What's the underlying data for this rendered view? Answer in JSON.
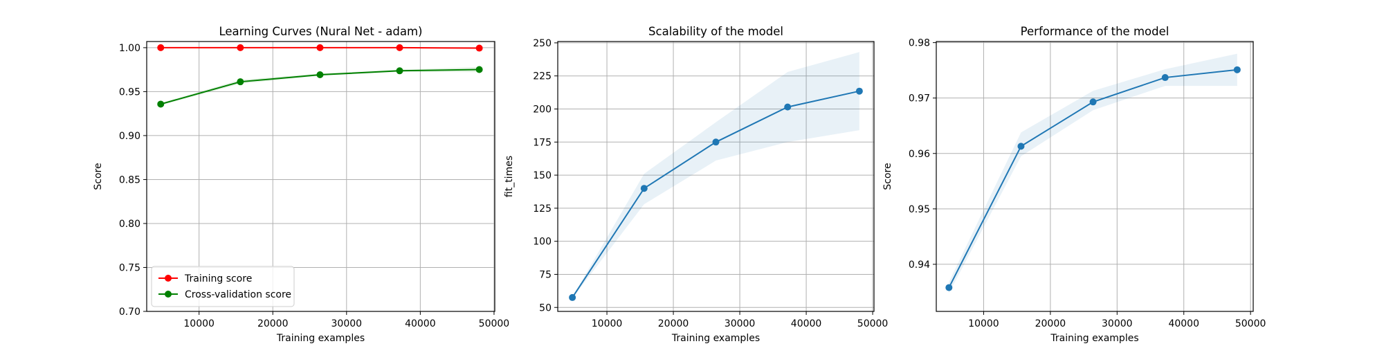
{
  "chart_data": [
    {
      "type": "line",
      "title": "Learning Curves (Nural Net - adam)",
      "xlabel": "Training examples",
      "ylabel": "Score",
      "xlim": [
        2900,
        50100
      ],
      "ylim": [
        0.7,
        1.007
      ],
      "xticks": [
        10000,
        20000,
        30000,
        40000,
        50000
      ],
      "xtick_labels": [
        "10000",
        "20000",
        "30000",
        "40000",
        "50000"
      ],
      "yticks": [
        0.7,
        0.75,
        0.8,
        0.85,
        0.9,
        0.95,
        1.0
      ],
      "ytick_labels": [
        "0.70",
        "0.75",
        "0.80",
        "0.85",
        "0.90",
        "0.95",
        "1.00"
      ],
      "grid": true,
      "legend_position": "lower-left",
      "x": [
        4800,
        15600,
        26400,
        37200,
        48000
      ],
      "series": [
        {
          "name": "Training score",
          "color": "#ff0000",
          "values": [
            1.0,
            1.0,
            1.0,
            1.0,
            0.9995
          ],
          "band_low": [
            0.9995,
            0.9995,
            0.9995,
            0.9995,
            0.999
          ],
          "band_high": [
            1.0,
            1.0,
            1.0,
            1.0,
            1.0
          ],
          "band_color": "#ff0000"
        },
        {
          "name": "Cross-validation score",
          "color": "#008000",
          "values": [
            0.9358,
            0.9612,
            0.9692,
            0.9737,
            0.9751
          ],
          "band_low": [
            0.9345,
            0.959,
            0.968,
            0.9725,
            0.9722
          ],
          "band_high": [
            0.937,
            0.9635,
            0.9705,
            0.975,
            0.978
          ],
          "band_color": "#008000"
        }
      ]
    },
    {
      "type": "line",
      "title": "Scalability of the model",
      "xlabel": "Training examples",
      "ylabel": "fit_times",
      "xlim": [
        2600,
        50200
      ],
      "ylim": [
        47,
        251
      ],
      "xticks": [
        10000,
        20000,
        30000,
        40000,
        50000
      ],
      "xtick_labels": [
        "10000",
        "20000",
        "30000",
        "40000",
        "50000"
      ],
      "yticks": [
        50,
        75,
        100,
        125,
        150,
        175,
        200,
        225,
        250
      ],
      "ytick_labels": [
        "50",
        "75",
        "100",
        "125",
        "150",
        "175",
        "200",
        "225",
        "250"
      ],
      "grid": true,
      "x": [
        4800,
        15600,
        26400,
        37200,
        48000
      ],
      "series": [
        {
          "color": "#1f77b4",
          "values": [
            57.5,
            140,
            175,
            201.5,
            213.5
          ],
          "band_low": [
            57,
            128,
            161,
            175,
            184
          ],
          "band_high": [
            58,
            151,
            190,
            228,
            243
          ],
          "band_color": "#1f77b4"
        }
      ]
    },
    {
      "type": "line",
      "title": "Performance of the model",
      "xlabel": "Training examples",
      "ylabel": "Score",
      "xlim": [
        2900,
        50400
      ],
      "ylim": [
        0.9315,
        0.9802
      ],
      "xticks": [
        10000,
        20000,
        30000,
        40000,
        50000
      ],
      "xtick_labels": [
        "10000",
        "20000",
        "30000",
        "40000",
        "50000"
      ],
      "yticks": [
        0.94,
        0.95,
        0.96,
        0.97,
        0.98
      ],
      "ytick_labels": [
        "0.94",
        "0.95",
        "0.96",
        "0.97",
        "0.98"
      ],
      "grid": true,
      "x": [
        4800,
        15600,
        26400,
        37200,
        48000
      ],
      "series": [
        {
          "color": "#1f77b4",
          "values": [
            0.9358,
            0.9613,
            0.9693,
            0.9737,
            0.9751
          ],
          "band_low": [
            0.9348,
            0.9595,
            0.9678,
            0.9722,
            0.9722
          ],
          "band_high": [
            0.9368,
            0.9638,
            0.9713,
            0.9752,
            0.978
          ],
          "band_color": "#1f77b4"
        }
      ]
    }
  ]
}
